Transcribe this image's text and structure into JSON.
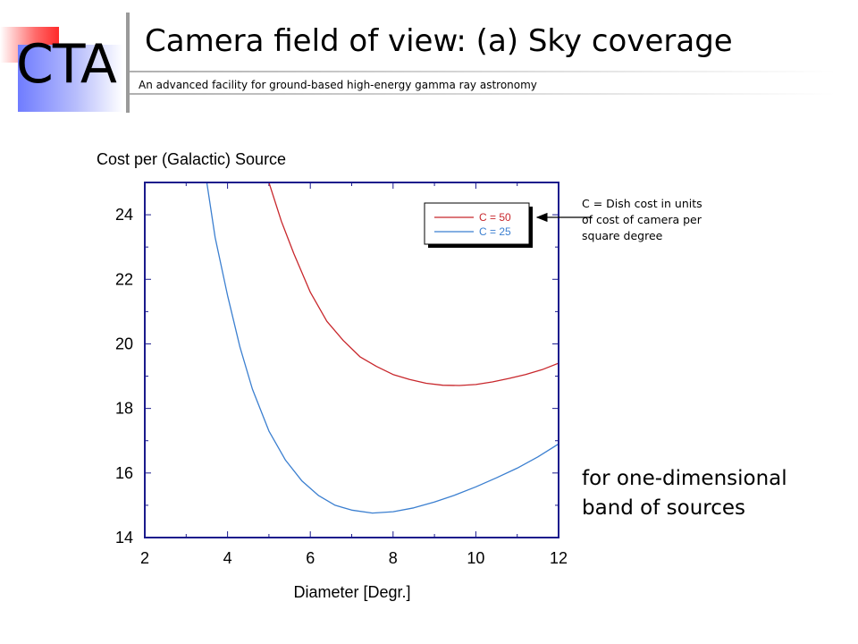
{
  "header": {
    "logo_text": "CTA",
    "title": "Camera field of view: (a) Sky coverage",
    "subtitle": "An advanced facility for ground-based high-energy gamma ray astronomy"
  },
  "note": {
    "line1": "C = Dish cost in units",
    "line2": "of cost of camera per",
    "line3": "square degree"
  },
  "side_text": {
    "line1": "for one-dimensional",
    "line2": "band of sources"
  },
  "chart_data": {
    "type": "line",
    "title": "Cost per (Galactic) Source",
    "xlabel": "Diameter [Degr.]",
    "ylabel": "",
    "xlim": [
      2,
      12
    ],
    "ylim": [
      14,
      25
    ],
    "xticks": [
      2,
      4,
      6,
      8,
      10,
      12
    ],
    "yticks": [
      14,
      16,
      18,
      20,
      22,
      24
    ],
    "legend_position": "top-right",
    "grid": false,
    "series": [
      {
        "name": "C = 50",
        "color": "#c8272c",
        "x": [
          5.0,
          5.3,
          5.6,
          6.0,
          6.4,
          6.8,
          7.2,
          7.6,
          8.0,
          8.4,
          8.8,
          9.2,
          9.6,
          10.0,
          10.4,
          10.8,
          11.2,
          11.6,
          12.0
        ],
        "y": [
          25.0,
          23.8,
          22.8,
          21.6,
          20.7,
          20.1,
          19.6,
          19.3,
          19.05,
          18.9,
          18.78,
          18.72,
          18.71,
          18.74,
          18.82,
          18.93,
          19.05,
          19.2,
          19.4
        ]
      },
      {
        "name": "C = 25",
        "color": "#3b7fd0",
        "x": [
          3.5,
          3.7,
          4.0,
          4.3,
          4.6,
          5.0,
          5.4,
          5.8,
          6.2,
          6.6,
          7.0,
          7.5,
          8.0,
          8.5,
          9.0,
          9.5,
          10.0,
          10.5,
          11.0,
          11.5,
          12.0
        ],
        "y": [
          25.0,
          23.3,
          21.5,
          19.9,
          18.6,
          17.3,
          16.4,
          15.75,
          15.3,
          15.0,
          14.85,
          14.76,
          14.8,
          14.92,
          15.1,
          15.32,
          15.57,
          15.85,
          16.15,
          16.5,
          16.9
        ]
      }
    ]
  }
}
